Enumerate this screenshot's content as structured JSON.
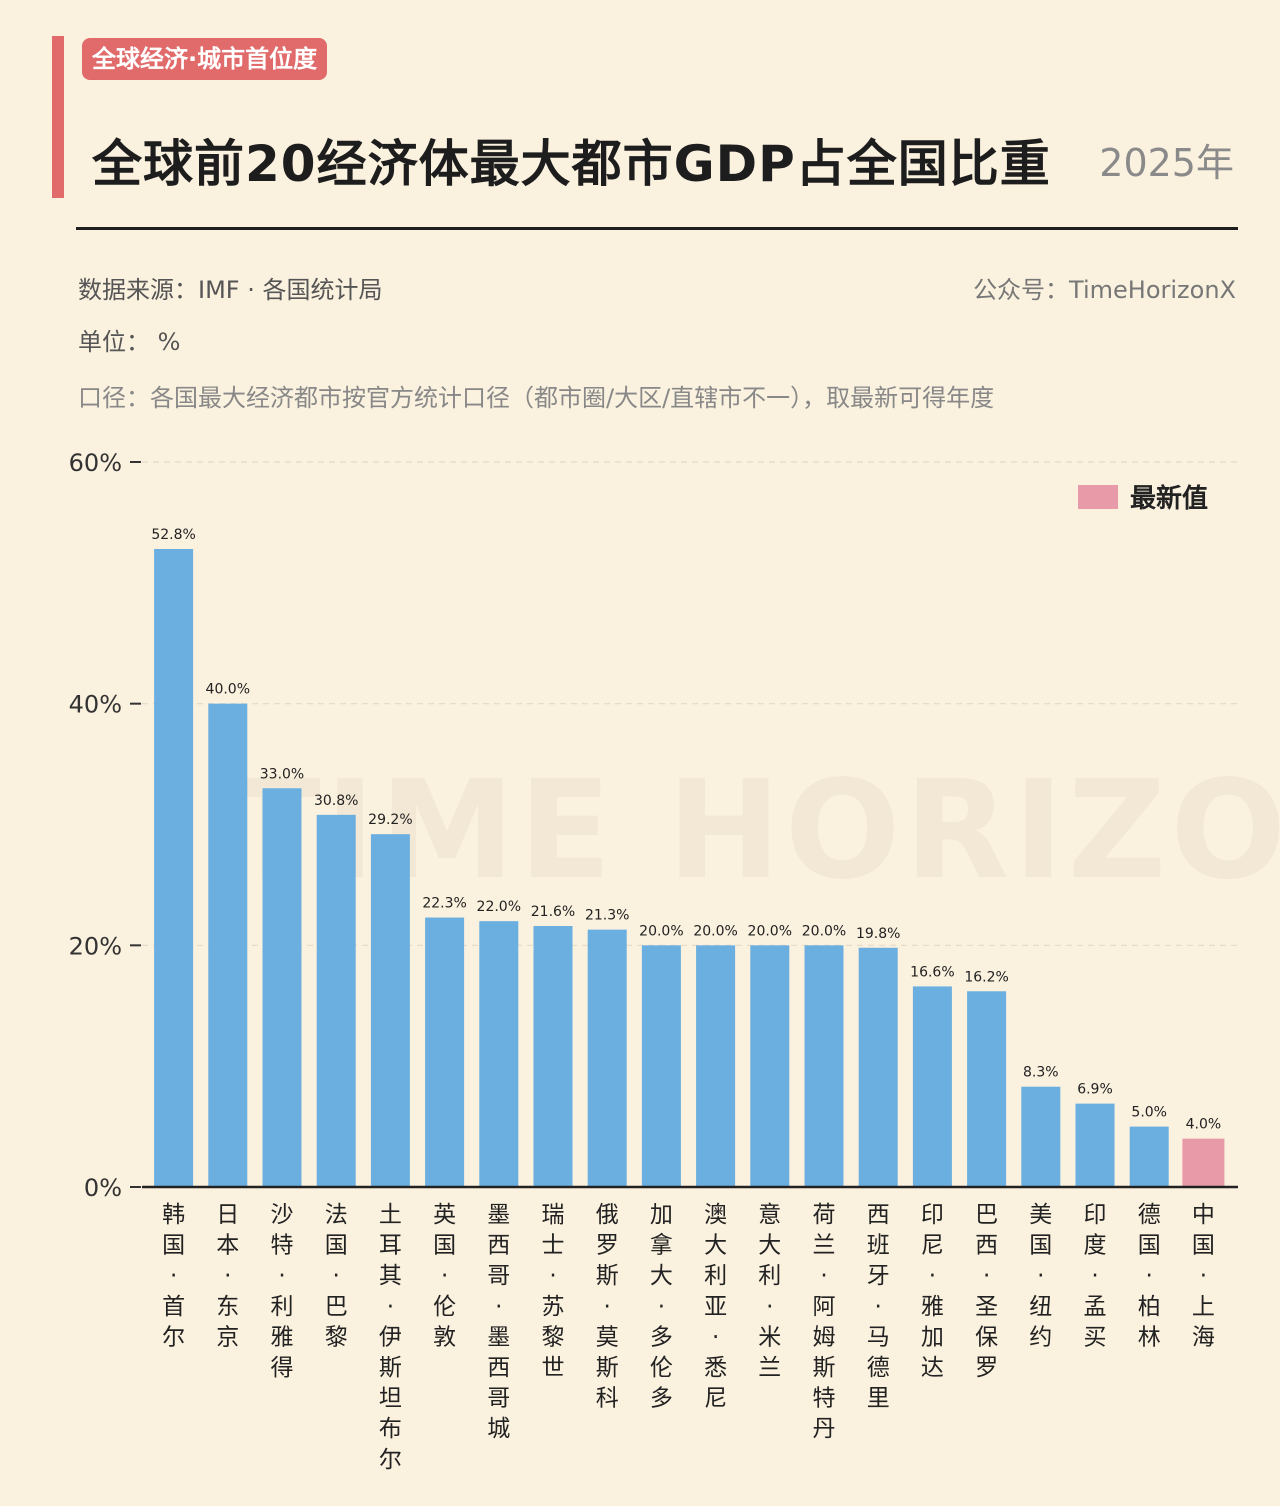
{
  "header": {
    "tag": "全球经济·城市首位度",
    "title": "全球前20经济体最大都市GDP占全国比重",
    "year": "2025年"
  },
  "meta": {
    "source": "数据来源：IMF · 各国统计局",
    "account": "公众号：TimeHorizonX",
    "unit": "单位：  %",
    "note": "口径：各国最大经济都市按官方统计口径（都市圈/大区/直辖市不一），取最新可得年度"
  },
  "watermark": "TIME HORIZON",
  "legend": {
    "label": "最新值",
    "color": "#e89aa8"
  },
  "colors": {
    "bar": "#6aafe0",
    "highlight": "#e89aa8"
  },
  "chart_data": {
    "type": "bar",
    "ylim": [
      0,
      60
    ],
    "yticks": [
      0,
      20,
      40,
      60
    ],
    "ytick_labels": [
      "0%",
      "20%",
      "40%",
      "60%"
    ],
    "grid": true,
    "legend_position": "top-right",
    "categories": [
      "韩国·首尔",
      "日本·东京",
      "沙特·利雅得",
      "法国·巴黎",
      "土耳其·伊斯坦布尔",
      "英国·伦敦",
      "墨西哥·墨西哥城",
      "瑞士·苏黎世",
      "俄罗斯·莫斯科",
      "加拿大·多伦多",
      "澳大利亚·悉尼",
      "意大利·米兰",
      "荷兰·阿姆斯特丹",
      "西班牙·马德里",
      "印尼·雅加达",
      "巴西·圣保罗",
      "美国·纽约",
      "印度·孟买",
      "德国·柏林",
      "中国·上海"
    ],
    "values": [
      52.8,
      40.0,
      33.0,
      30.8,
      29.2,
      22.3,
      22.0,
      21.6,
      21.3,
      20.0,
      20.0,
      20.0,
      20.0,
      19.8,
      16.6,
      16.2,
      8.3,
      6.9,
      5.0,
      4.0
    ],
    "value_labels": [
      "52.8%",
      "40.0%",
      "33.0%",
      "30.8%",
      "29.2%",
      "22.3%",
      "22.0%",
      "21.6%",
      "21.3%",
      "20.0%",
      "20.0%",
      "20.0%",
      "20.0%",
      "19.8%",
      "16.6%",
      "16.2%",
      "8.3%",
      "6.9%",
      "5.0%",
      "4.0%"
    ],
    "highlight_category": "中国·上海"
  }
}
